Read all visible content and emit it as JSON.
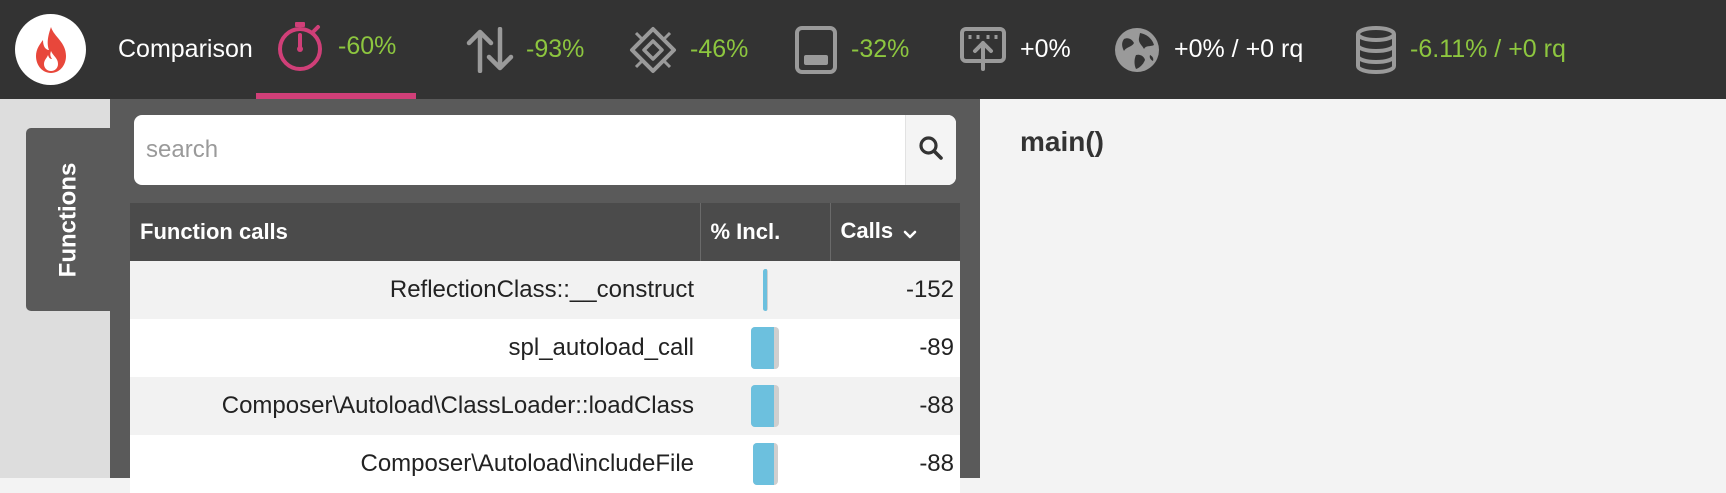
{
  "app": {
    "title": "Comparison",
    "logo_icon": "flame-icon"
  },
  "metrics": [
    {
      "id": "wall-time",
      "icon": "stopwatch-icon",
      "value": "-60%",
      "color": "#8dc63f",
      "active": true
    },
    {
      "id": "calls",
      "icon": "up-down-arrows-icon",
      "value": "-93%",
      "color": "#8dc63f",
      "active": false
    },
    {
      "id": "cpu",
      "icon": "cpu-chip-icon",
      "value": "-46%",
      "color": "#8dc63f",
      "active": false
    },
    {
      "id": "memory",
      "icon": "memory-icon",
      "value": "-32%",
      "color": "#8dc63f",
      "active": false
    },
    {
      "id": "io",
      "icon": "upload-network-icon",
      "value": "+0%",
      "color": "#ffffff",
      "active": false
    },
    {
      "id": "network",
      "icon": "globe-icon",
      "value": "+0% / +0 rq",
      "color": "#ffffff",
      "active": false
    },
    {
      "id": "sql",
      "icon": "database-icon",
      "value": "-6.11% / +0 rq",
      "color": "#8dc63f",
      "active": false
    }
  ],
  "sidebar": {
    "tab_label": "Functions"
  },
  "search": {
    "placeholder": "search",
    "value": "",
    "button_icon": "search-icon"
  },
  "table": {
    "columns": {
      "name": "Function calls",
      "incl": "% Incl.",
      "calls": "Calls",
      "sort_icon": "chevron-down-icon"
    },
    "rows": [
      {
        "name": "ReflectionClass::__construct",
        "incl_fraction": 0.01,
        "calls": "-152"
      },
      {
        "name": "spl_autoload_call",
        "incl_fraction": 0.55,
        "calls": "-89"
      },
      {
        "name": "Composer\\Autoload\\ClassLoader::loadClass",
        "incl_fraction": 0.55,
        "calls": "-88"
      },
      {
        "name": "Composer\\Autoload\\includeFile",
        "incl_fraction": 0.5,
        "calls": "-88"
      }
    ]
  },
  "main": {
    "title": "main()"
  },
  "colors": {
    "topbar": "#333333",
    "accent": "#d03f78",
    "positive": "#8dc63f",
    "bar": "#6cc0de"
  }
}
